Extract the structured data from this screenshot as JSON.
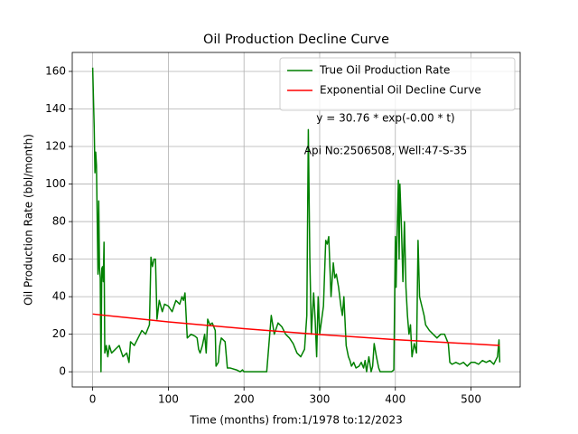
{
  "chart_data": {
    "type": "line",
    "title": "Oil Production Decline Curve",
    "x_label": "Time (months) from:1/1978 to:12/2023",
    "y_label": "Oil Production Rate (bbl/month)",
    "annotations": [
      "y = 30.76 * exp(-0.00 * t)",
      "Api No:2506508, Well:47-S-35"
    ],
    "xlim": [
      -27,
      565
    ],
    "ylim": [
      -8.1,
      170.1
    ],
    "xticks": [
      0,
      100,
      200,
      300,
      400,
      500
    ],
    "yticks": [
      0,
      20,
      40,
      60,
      80,
      100,
      120,
      140,
      160
    ],
    "grid": true,
    "legend": "upper right",
    "series": [
      {
        "name": "True Oil Production Rate",
        "color": "#008000",
        "x": [
          0,
          2,
          3,
          4,
          5,
          7,
          8,
          9,
          10,
          11,
          12,
          13,
          14,
          15,
          16,
          18,
          20,
          22,
          25,
          30,
          35,
          40,
          45,
          48,
          50,
          55,
          60,
          65,
          70,
          75,
          77,
          79,
          81,
          83,
          85,
          88,
          92,
          95,
          100,
          105,
          110,
          115,
          118,
          120,
          122,
          125,
          130,
          135,
          138,
          140,
          142,
          145,
          148,
          150,
          152,
          155,
          158,
          162,
          163,
          166,
          168,
          170,
          175,
          178,
          182,
          190,
          195,
          198,
          200,
          230,
          236,
          240,
          245,
          250,
          255,
          260,
          265,
          270,
          275,
          280,
          283,
          285,
          287,
          289,
          292,
          294,
          296,
          298,
          300,
          305,
          308,
          310,
          312,
          315,
          318,
          320,
          322,
          325,
          328,
          330,
          332,
          335,
          338,
          340,
          342,
          345,
          348,
          352,
          355,
          358,
          360,
          362,
          365,
          368,
          370,
          372,
          375,
          378,
          380,
          385,
          390,
          395,
          398,
          400,
          401,
          402,
          404,
          405,
          406,
          408,
          410,
          412,
          414,
          416,
          418,
          420,
          422,
          425,
          428,
          430,
          432,
          435,
          438,
          440,
          445,
          450,
          455,
          460,
          465,
          470,
          472,
          475,
          480,
          485,
          490,
          495,
          500,
          505,
          510,
          515,
          520,
          525,
          530,
          535,
          537,
          538
        ],
        "values": [
          162,
          130,
          106,
          117,
          110,
          52,
          91,
          55,
          50,
          0,
          55,
          56,
          48,
          69,
          10,
          14,
          8,
          14,
          10,
          12,
          14,
          8,
          10,
          5,
          16,
          14,
          18,
          22,
          20,
          25,
          61,
          56,
          60,
          60,
          28,
          38,
          32,
          36,
          35,
          32,
          38,
          36,
          40,
          38,
          42,
          18,
          20,
          19,
          18,
          12,
          10,
          14,
          20,
          10,
          28,
          25,
          26,
          22,
          3,
          5,
          14,
          18,
          16,
          2,
          2,
          1,
          0,
          1,
          0,
          0,
          30,
          20,
          26,
          24,
          20,
          18,
          15,
          10,
          8,
          12,
          30,
          129,
          60,
          20,
          42,
          28,
          8,
          40,
          20,
          35,
          70,
          68,
          72,
          40,
          58,
          50,
          52,
          45,
          35,
          30,
          40,
          14,
          8,
          6,
          3,
          5,
          2,
          3,
          5,
          2,
          6,
          0,
          8,
          0,
          3,
          15,
          8,
          2,
          0,
          0,
          0,
          0,
          1,
          72,
          45,
          68,
          102,
          60,
          100,
          78,
          48,
          80,
          45,
          30,
          20,
          25,
          8,
          15,
          10,
          70,
          40,
          35,
          30,
          25,
          22,
          20,
          18,
          20,
          20,
          15,
          5,
          4,
          5,
          4,
          5,
          3,
          5,
          5,
          4,
          6,
          5,
          6,
          4,
          8,
          17,
          5
        ]
      },
      {
        "name": "Exponential Oil Decline Curve",
        "color": "#ff0000",
        "x": [
          0,
          100,
          200,
          300,
          400,
          538
        ],
        "values": [
          30.76,
          26.58,
          22.97,
          19.85,
          17.15,
          14.02
        ]
      }
    ]
  }
}
